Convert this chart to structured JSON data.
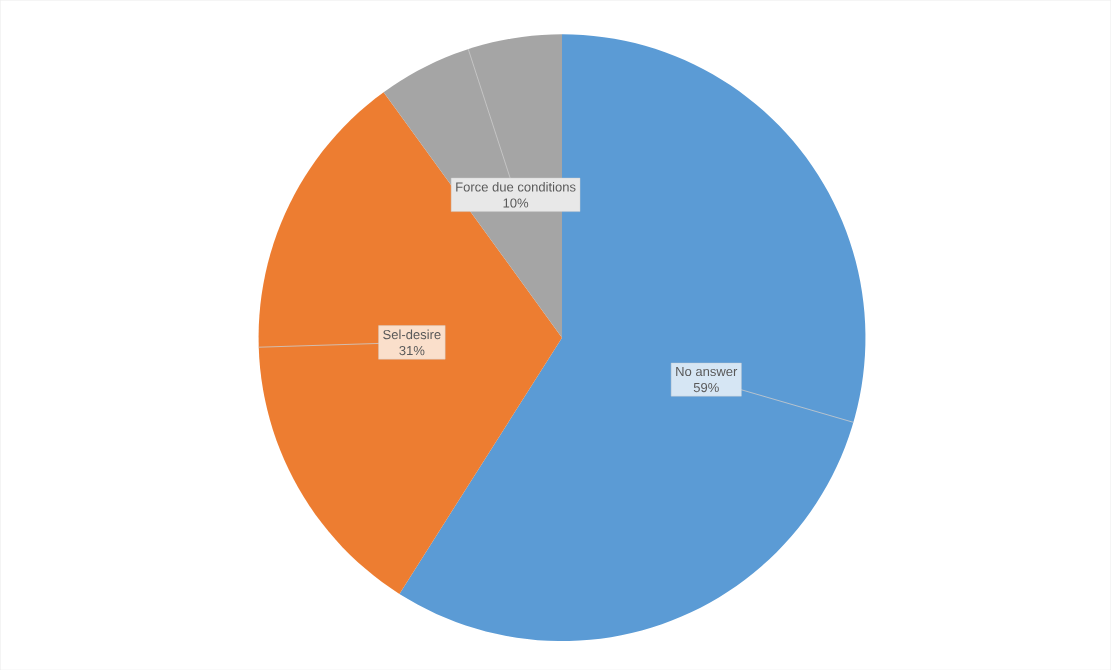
{
  "chart_data": {
    "type": "pie",
    "categories": [
      "No answer",
      "Sel-desire",
      "Force due conditions"
    ],
    "values": [
      59,
      31,
      10
    ],
    "colors": [
      "#5b9bd5",
      "#ed7d31",
      "#a5a5a5"
    ],
    "value_labels": [
      "59%",
      "31%",
      "10%"
    ]
  }
}
